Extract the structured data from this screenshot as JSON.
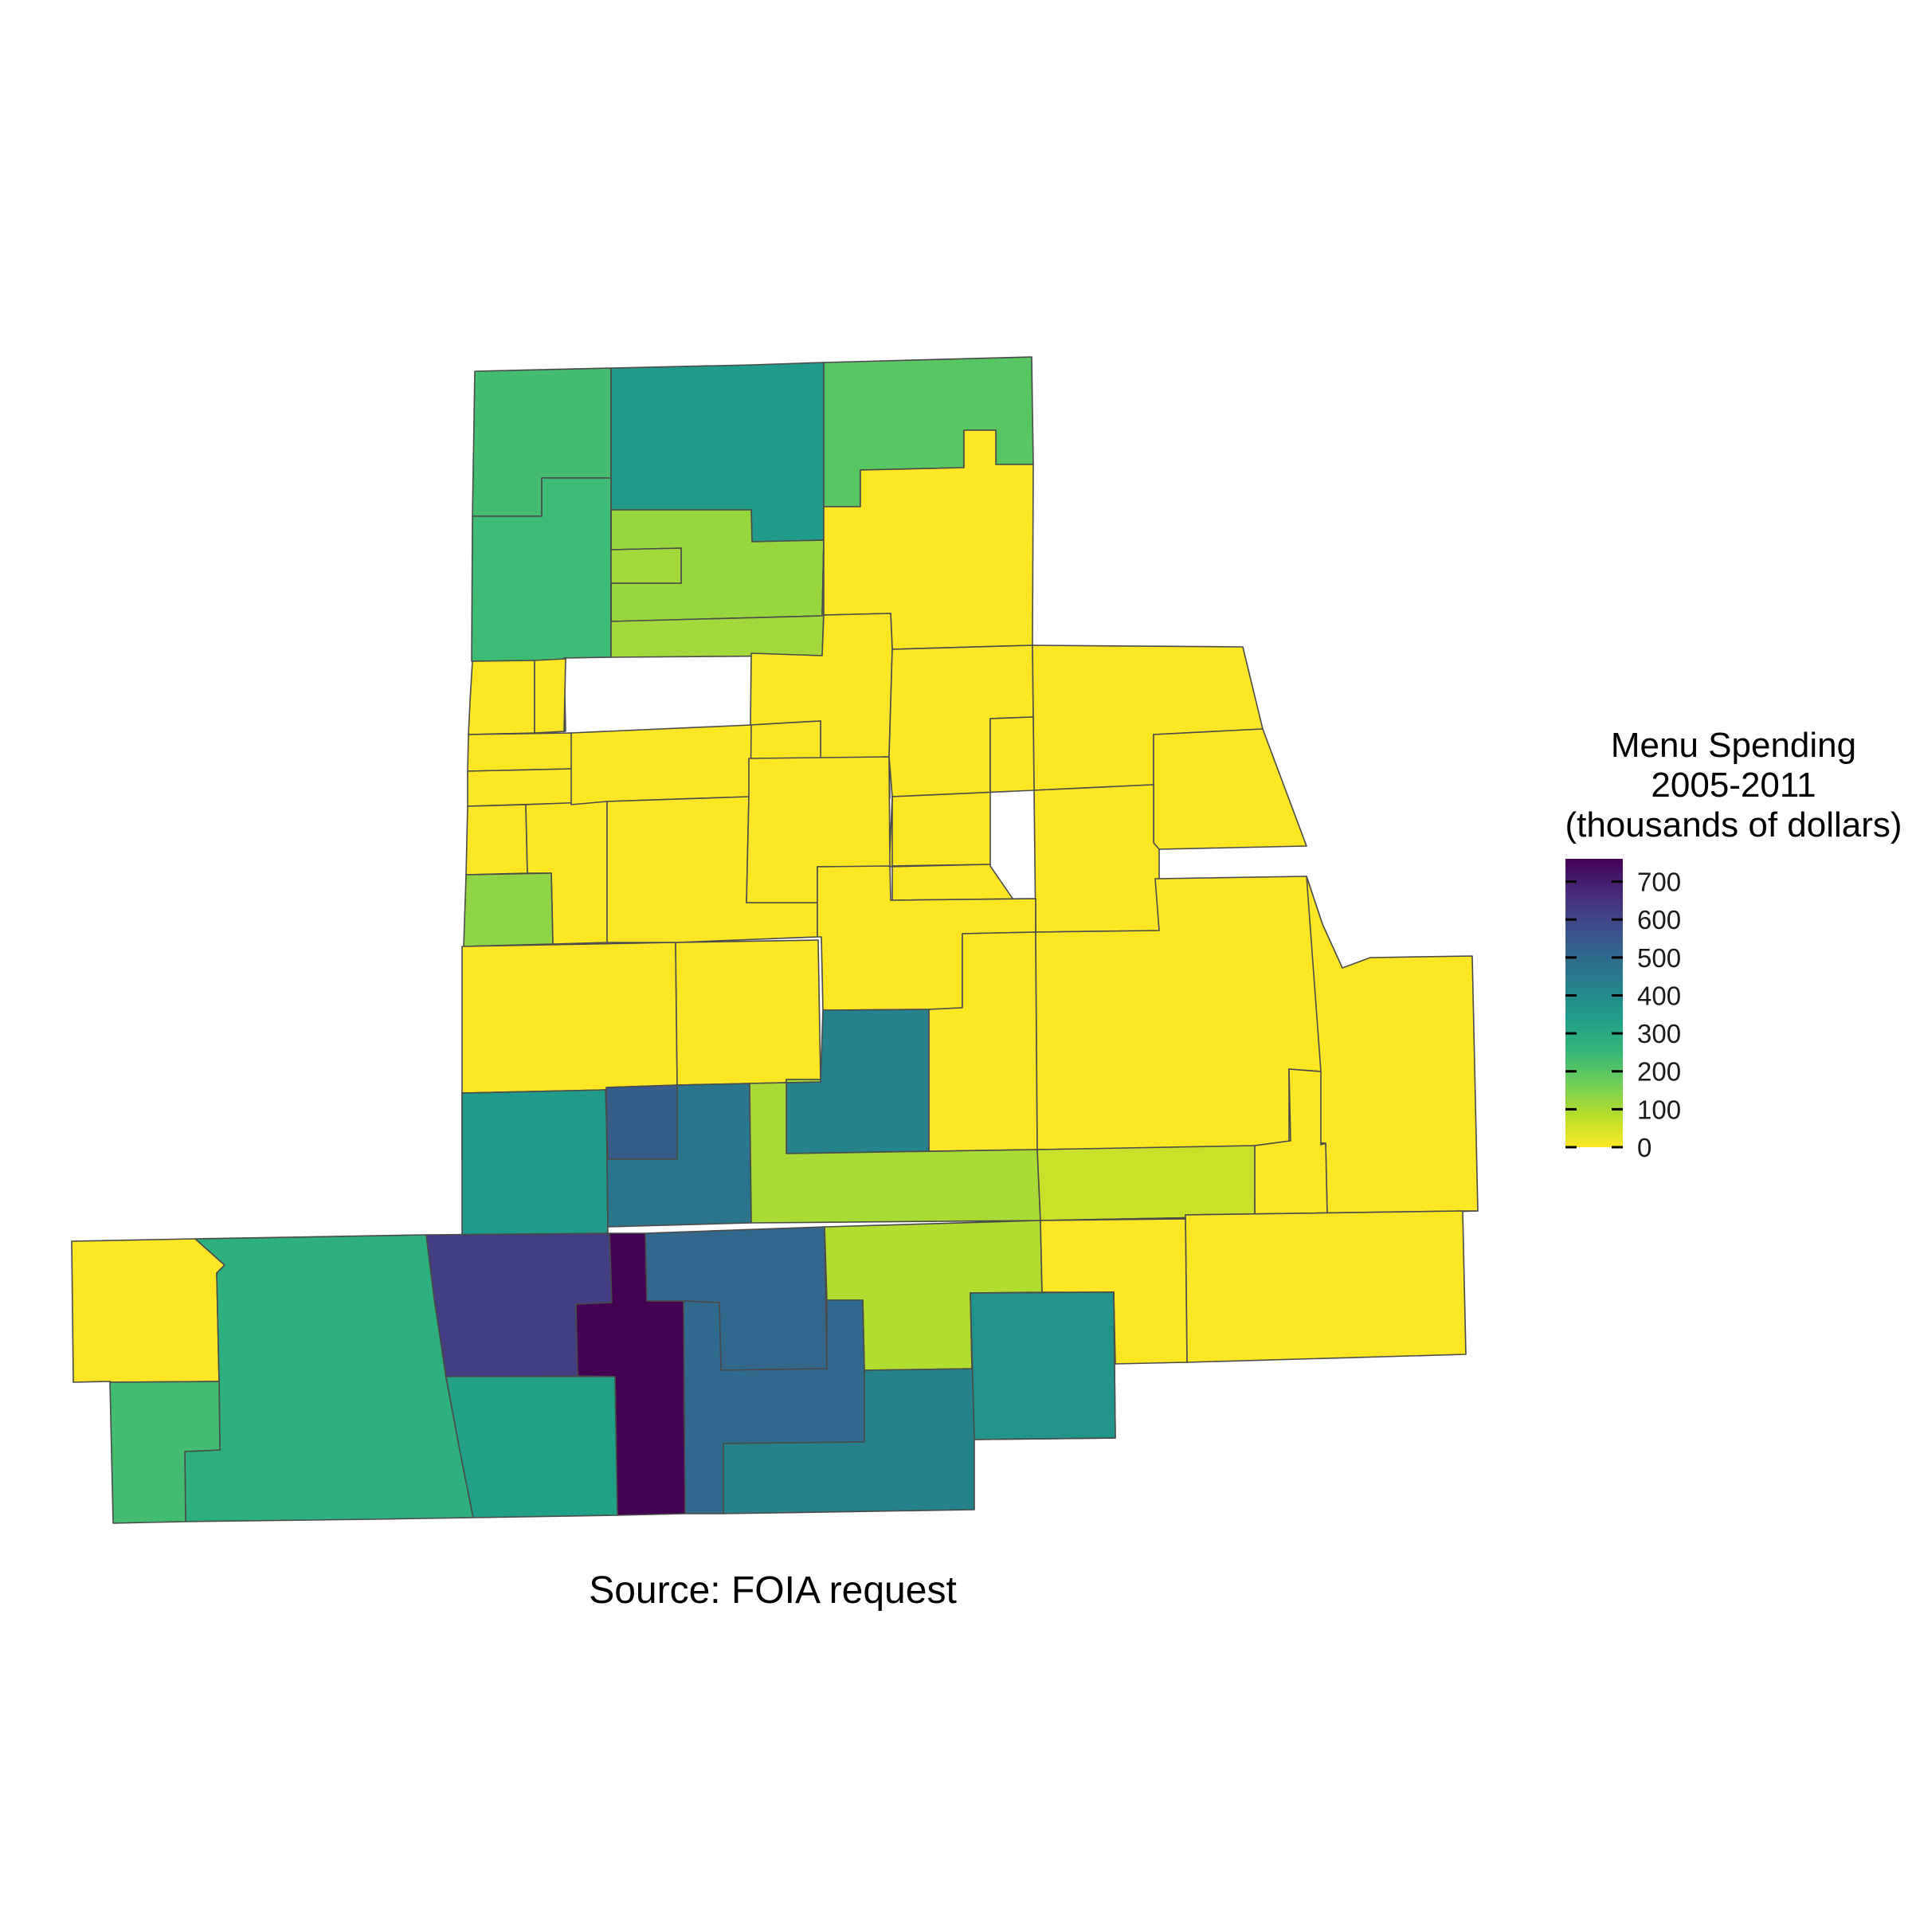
{
  "caption": "Source: FOIA request",
  "legend": {
    "title_lines": [
      "Menu Spending",
      "2005-2011",
      "(thousands of dollars)"
    ],
    "min": 0,
    "max": 760,
    "ticks": [
      0,
      100,
      200,
      300,
      400,
      500,
      600,
      700
    ],
    "tick_labels": [
      "0",
      "100",
      "200",
      "300",
      "400",
      "500",
      "600",
      "700"
    ],
    "palette": [
      "#fde725",
      "#b5de2b",
      "#6ece58",
      "#35b779",
      "#1f9e89",
      "#26828e",
      "#31688e",
      "#3e4989",
      "#482878",
      "#440154"
    ]
  },
  "chart_data": {
    "type": "choropleth",
    "title": "",
    "value_label": "Menu Spending 2005-2011 (thousands of dollars)",
    "scale": "viridis",
    "range": [
      0,
      760
    ],
    "region_values": [
      230,
      350,
      200,
      120,
      120,
      240,
      110,
      0,
      0,
      0,
      0,
      0,
      0,
      0,
      0,
      0,
      0,
      0,
      0,
      0,
      0,
      0,
      130,
      0,
      0,
      0,
      0,
      0,
      0,
      0,
      0,
      0,
      0,
      0,
      540,
      350,
      460,
      420,
      100,
      60,
      100,
      0,
      0,
      280,
      230,
      620,
      760,
      330,
      510,
      90,
      0,
      500,
      420,
      370,
      340
    ]
  }
}
